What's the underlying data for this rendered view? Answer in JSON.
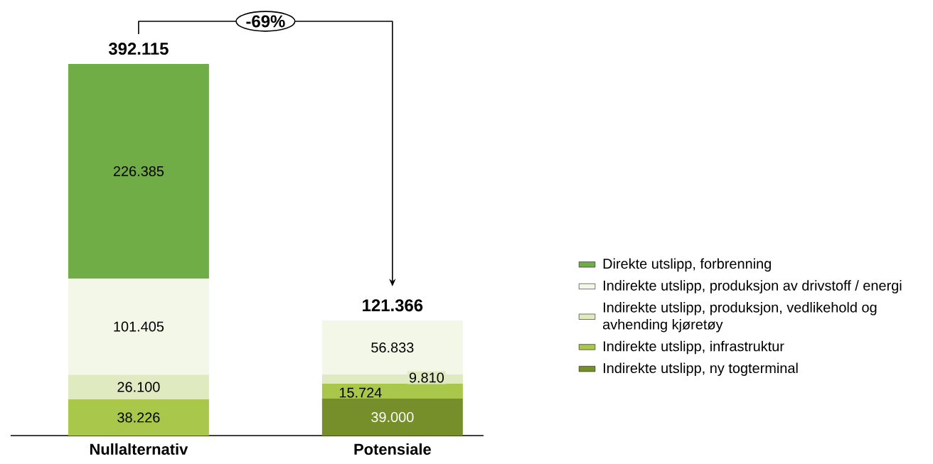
{
  "chart_data": {
    "type": "bar",
    "stacked": true,
    "legend": "right",
    "categories": [
      "Nullalternativ",
      "Potensiale"
    ],
    "series": [
      {
        "name": "Indirekte utslipp, ny togterminal",
        "color": "#768f2b",
        "values": [
          null,
          39000
        ],
        "value_labels": [
          null,
          "39.000"
        ]
      },
      {
        "name": "Indirekte utslipp, infrastruktur",
        "color": "#a9c74a",
        "values": [
          38226,
          15724
        ],
        "value_labels": [
          "38.226",
          "15.724"
        ]
      },
      {
        "name": "Indirekte utslipp, produksjon, vedlikehold og avhending kjøretøy",
        "color": "#dfeac0",
        "values": [
          26100,
          9810
        ],
        "value_labels": [
          "26.100",
          "9.810"
        ]
      },
      {
        "name": "Indirekte utslipp, produksjon av drivstoff / energi",
        "color": "#f2f7e8",
        "values": [
          101405,
          56833
        ],
        "value_labels": [
          "101.405",
          "56.833"
        ]
      },
      {
        "name": "Direkte utslipp, forbrenning",
        "color": "#70ad47",
        "values": [
          226385,
          null
        ],
        "value_labels": [
          "226.385",
          null
        ]
      }
    ],
    "totals": [
      "392.115",
      "121.366"
    ],
    "annotations": [
      "-69%"
    ]
  }
}
